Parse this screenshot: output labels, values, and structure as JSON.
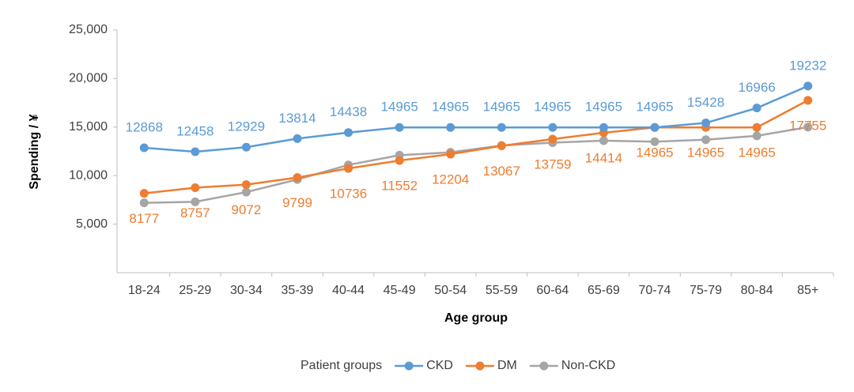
{
  "chart_data": {
    "type": "line",
    "y_label": "Spending / ¥",
    "x_label": "Age group",
    "legend_title": "Patient groups",
    "categories": [
      "18-24",
      "25-29",
      "30-34",
      "35-39",
      "40-44",
      "45-49",
      "50-54",
      "55-59",
      "60-64",
      "65-69",
      "70-74",
      "75-79",
      "80-84",
      "85+"
    ],
    "series": [
      {
        "name": "CKD",
        "color": "#5b9bd5",
        "labels": "above",
        "values": [
          12868,
          12458,
          12929,
          13814,
          14438,
          14965,
          14965,
          14965,
          14965,
          14965,
          14965,
          15428,
          16966,
          19232
        ]
      },
      {
        "name": "DM",
        "color": "#ed7d31",
        "labels": "below",
        "values": [
          8177,
          8757,
          9072,
          9799,
          10736,
          11552,
          12204,
          13067,
          13759,
          14414,
          14965,
          14965,
          14965,
          17755
        ]
      },
      {
        "name": "Non-CKD",
        "color": "#a5a5a5",
        "labels": "none",
        "values": [
          7200,
          7300,
          8300,
          9600,
          11100,
          12100,
          12400,
          13100,
          13400,
          13600,
          13500,
          13700,
          14100,
          15000
        ]
      }
    ],
    "ylim": [
      0,
      25000
    ],
    "yticks": [
      {
        "value": 5000,
        "label": "5,000"
      },
      {
        "value": 10000,
        "label": "10,000"
      },
      {
        "value": 15000,
        "label": "15,000"
      },
      {
        "value": 20000,
        "label": "20,000"
      },
      {
        "value": 25000,
        "label": "25,000"
      }
    ],
    "grid": false,
    "legend": "bottom"
  }
}
